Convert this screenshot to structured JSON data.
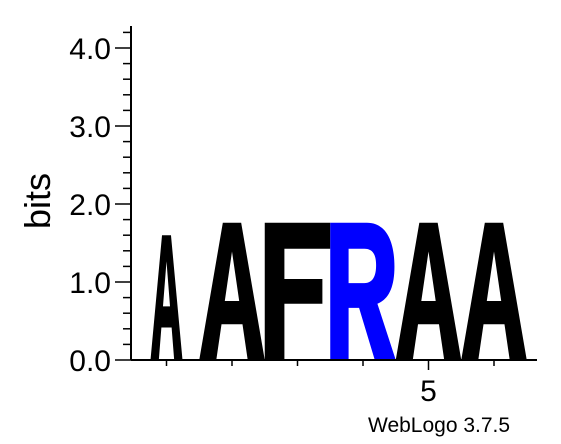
{
  "chart_data": {
    "type": "sequence-logo",
    "ylabel": "bits",
    "ylim": [
      0,
      4.3
    ],
    "yticks": [
      0.0,
      1.0,
      2.0,
      3.0,
      4.0
    ],
    "ytick_labels": [
      "0.0",
      "1.0",
      "2.0",
      "3.0",
      "4.0"
    ],
    "x_ticks_labeled": [
      {
        "position": 5,
        "label": "5"
      }
    ],
    "positions": [
      1,
      2,
      3,
      4,
      5,
      6
    ],
    "columns": [
      {
        "position": 1,
        "letter": "A",
        "bits": 1.6,
        "color": "#000000"
      },
      {
        "position": 2,
        "letter": "A",
        "bits": 1.76,
        "color": "#000000"
      },
      {
        "position": 3,
        "letter": "F",
        "bits": 1.76,
        "color": "#000000"
      },
      {
        "position": 4,
        "letter": "R",
        "bits": 1.76,
        "color": "#0000ff"
      },
      {
        "position": 5,
        "letter": "A",
        "bits": 1.76,
        "color": "#000000"
      },
      {
        "position": 6,
        "letter": "A",
        "bits": 1.76,
        "color": "#000000"
      }
    ]
  },
  "credit": "WebLogo 3.7.5"
}
